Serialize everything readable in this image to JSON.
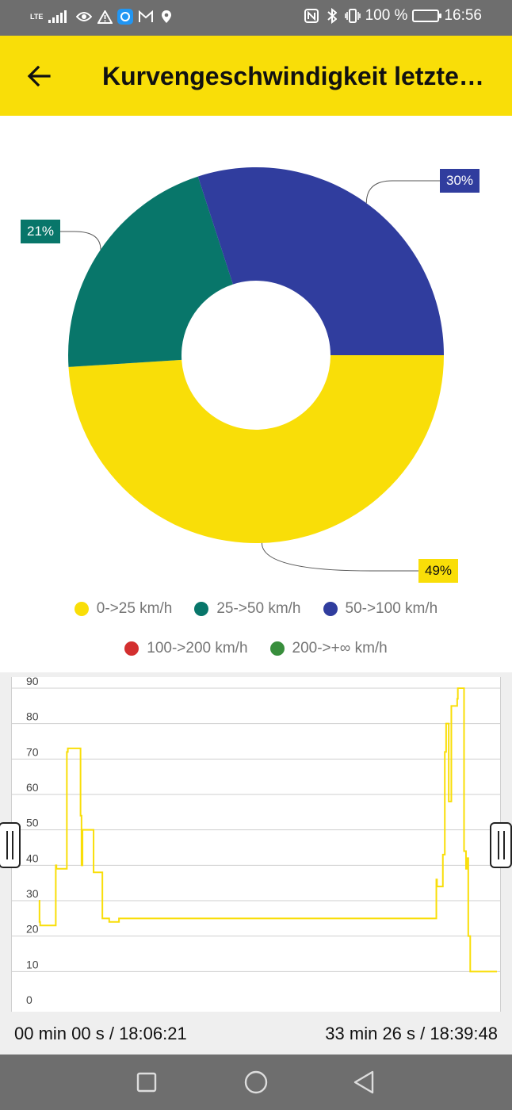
{
  "status_bar": {
    "network": "LTE",
    "battery": "100 %",
    "time": "16:56",
    "left_icons": [
      "signal-icon",
      "eye-icon",
      "warning-icon",
      "app-icon",
      "mail-icon",
      "location-icon"
    ],
    "right_icons": [
      "nfc-icon",
      "bluetooth-icon",
      "vibrate-icon",
      "battery-icon"
    ]
  },
  "app_bar": {
    "title": "Kurvengeschwindigkeit letzte…",
    "back_icon": "arrow-left-icon",
    "background": "#f9de08"
  },
  "donut": {
    "labels": [
      "49%",
      "21%",
      "30%"
    ]
  },
  "legend": {
    "items": [
      {
        "label": "0->25 km/h",
        "color": "#f9de08"
      },
      {
        "label": "25->50 km/h",
        "color": "#08766a"
      },
      {
        "label": "50->100 km/h",
        "color": "#303d9e"
      },
      {
        "label": "100->200 km/h",
        "color": "#d32f2f"
      },
      {
        "label": "200->+∞ km/h",
        "color": "#388e3c"
      }
    ]
  },
  "line_chart": {
    "start_label": "00 min 00 s / 18:06:21",
    "end_label": "33 min 26 s / 18:39:48"
  },
  "chart_data": [
    {
      "type": "pie",
      "categories": [
        "0->25 km/h",
        "25->50 km/h",
        "50->100 km/h",
        "100->200 km/h",
        "200->+∞ km/h"
      ],
      "values": [
        49,
        21,
        30,
        0,
        0
      ],
      "colors": [
        "#f9de08",
        "#08766a",
        "#303d9e",
        "#d32f2f",
        "#388e3c"
      ],
      "donut": true,
      "legend": "bottom"
    },
    {
      "type": "line",
      "color": "#f9de08",
      "ylim": [
        0,
        90
      ],
      "yticks": [
        0,
        10,
        20,
        30,
        40,
        50,
        60,
        70,
        80,
        90
      ],
      "grid": true,
      "x_seconds": [
        0,
        2,
        4,
        50,
        52,
        54,
        84,
        86,
        89,
        126,
        128,
        129,
        131,
        134,
        135,
        166,
        168,
        193,
        195,
        198,
        216,
        217,
        219,
        244,
        246,
        274,
        1220,
        1222,
        1240,
        1241,
        1243,
        1246,
        1248,
        1250,
        1256,
        1258,
        1264,
        1266,
        1284,
        1286,
        1303,
        1305,
        1306,
        1311,
        1313,
        1315,
        1318,
        1321,
        1324,
        1338,
        1340,
        1355,
        1362,
        1364,
        1366,
        1370,
        1375,
        1378,
        1392,
        1393,
        1395,
        1401,
        1403,
        1406
      ],
      "y_kmh": [
        30,
        24,
        23,
        23,
        40,
        39,
        39,
        72,
        73,
        73,
        54,
        54,
        40,
        50,
        50,
        50,
        38,
        38,
        25,
        25,
        24,
        24,
        24,
        24,
        25,
        25,
        36,
        34,
        43,
        43,
        43,
        72,
        72,
        80,
        80,
        58,
        58,
        85,
        87,
        90,
        90,
        44,
        44,
        39,
        42,
        42,
        20,
        20,
        10,
        10,
        10,
        10,
        10,
        10,
        10,
        10,
        10,
        10,
        10,
        10,
        10,
        10,
        10,
        10
      ]
    }
  ]
}
